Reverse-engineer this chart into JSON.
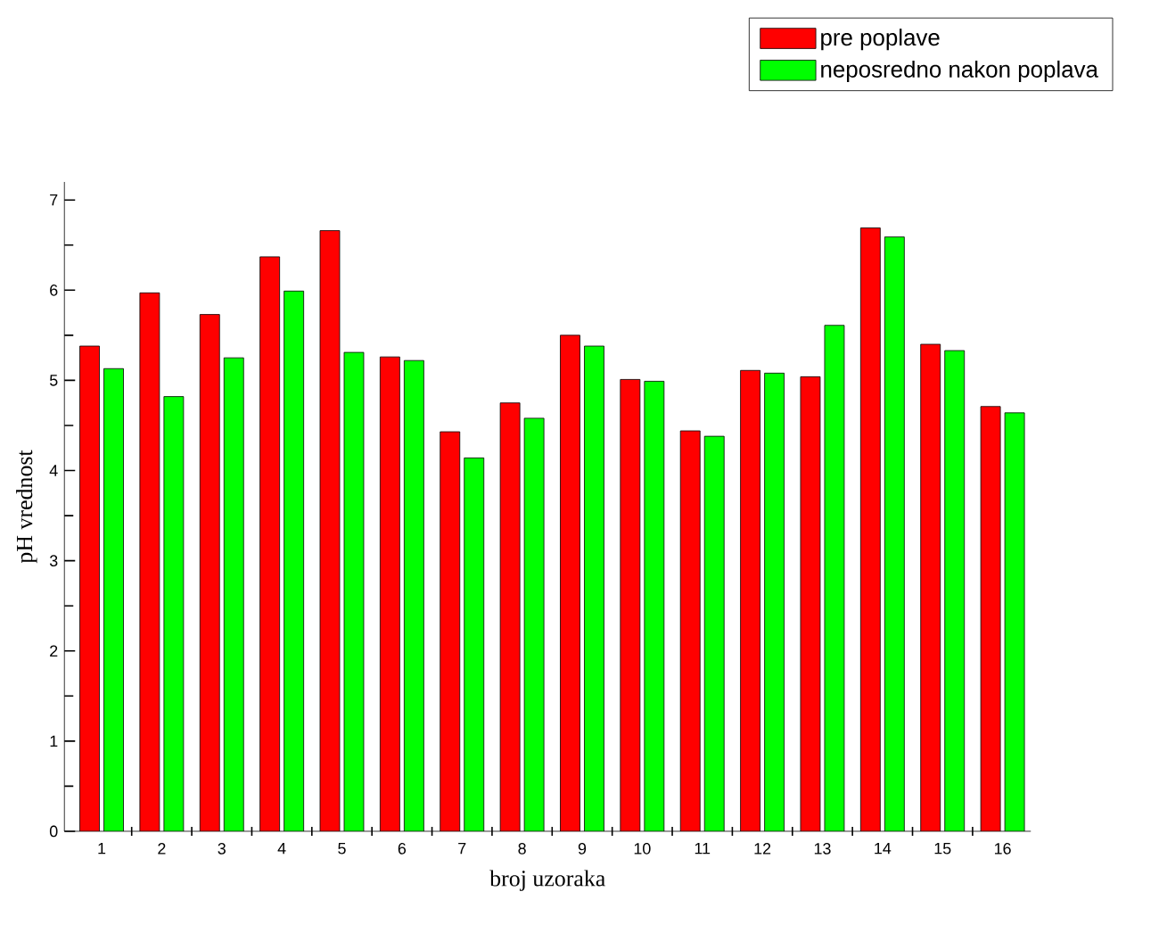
{
  "chart_data": {
    "type": "bar",
    "xlabel": "broj uzoraka",
    "ylabel": "pH vrednost",
    "categories": [
      "1",
      "2",
      "3",
      "4",
      "5",
      "6",
      "7",
      "8",
      "9",
      "10",
      "11",
      "12",
      "13",
      "14",
      "15",
      "16"
    ],
    "series": [
      {
        "name": "pre poplave",
        "color": "#ff0000",
        "values": [
          5.38,
          5.97,
          5.73,
          6.37,
          6.66,
          5.26,
          4.43,
          4.75,
          5.5,
          5.01,
          4.44,
          5.11,
          5.04,
          6.69,
          5.4,
          4.71
        ]
      },
      {
        "name": "neposredno nakon poplava",
        "color": "#00ff00",
        "values": [
          5.13,
          4.82,
          5.25,
          5.99,
          5.31,
          5.22,
          4.14,
          4.58,
          5.38,
          4.99,
          4.38,
          5.08,
          5.61,
          6.59,
          5.33,
          4.64
        ]
      }
    ],
    "ylim": [
      0,
      7.2
    ],
    "yticks": [
      0,
      1,
      2,
      3,
      4,
      5,
      6,
      7
    ],
    "grid": false,
    "legend": "top right"
  }
}
